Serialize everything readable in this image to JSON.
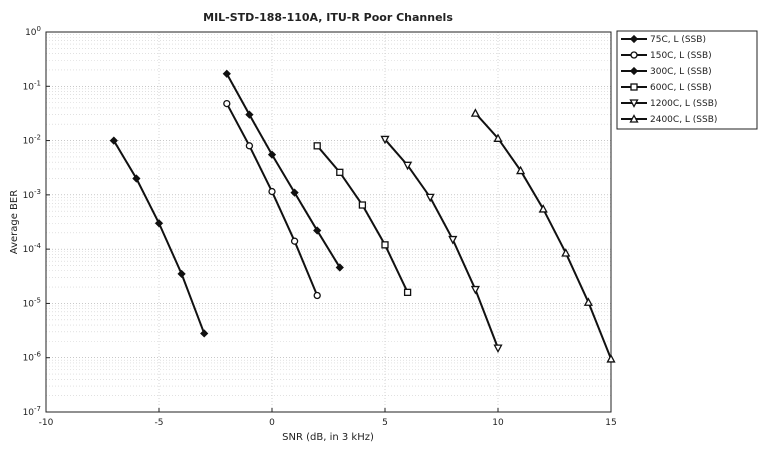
{
  "chart_data": {
    "type": "line",
    "title": "MIL-STD-188-110A, ITU-R Poor Channels",
    "xlabel": "SNR (dB, in 3 kHz)",
    "ylabel": "Average BER",
    "xlim": [
      -10,
      15
    ],
    "ylim": [
      1e-07,
      1
    ],
    "yscale": "log",
    "grid": true,
    "legend_position": "outside-right",
    "x_ticks": [
      "-10",
      "-5",
      "0",
      "5",
      "10",
      "15"
    ],
    "y_tick_exponents": [
      "0",
      "-1",
      "-2",
      "-3",
      "-4",
      "-5",
      "-6",
      "-7"
    ],
    "y_tick_base": "10",
    "line_color": "#111111",
    "series": [
      {
        "name": "75C, L (SSB)",
        "marker": "diamond",
        "x": [
          -7,
          -6,
          -5,
          -4,
          -3
        ],
        "y": [
          0.01,
          0.002,
          0.0003,
          3.5e-05,
          2.8e-06
        ]
      },
      {
        "name": "150C, L (SSB)",
        "marker": "circle",
        "x": [
          -2,
          -1,
          0,
          1,
          2
        ],
        "y": [
          0.048,
          0.008,
          0.00115,
          0.00014,
          1.4e-05
        ]
      },
      {
        "name": "300C, L (SSB)",
        "marker": "diamond",
        "x": [
          -2,
          -1,
          0,
          1,
          2,
          3
        ],
        "y": [
          0.17,
          0.03,
          0.0055,
          0.0011,
          0.00022,
          4.6e-05
        ]
      },
      {
        "name": "600C, L (SSB)",
        "marker": "square",
        "x": [
          2,
          3,
          4,
          5,
          6
        ],
        "y": [
          0.008,
          0.0026,
          0.00065,
          0.00012,
          1.6e-05
        ]
      },
      {
        "name": "1200C, L (SSB)",
        "marker": "triangle-down",
        "x": [
          5,
          6,
          7,
          8,
          9,
          10
        ],
        "y": [
          0.0105,
          0.0035,
          0.0009,
          0.00015,
          1.8e-05,
          1.5e-06
        ]
      },
      {
        "name": "2400C, L (SSB)",
        "marker": "triangle-up",
        "x": [
          9,
          10,
          11,
          12,
          13,
          14,
          15
        ],
        "y": [
          0.032,
          0.011,
          0.0028,
          0.00055,
          8.5e-05,
          1.05e-05,
          9.5e-07
        ]
      }
    ]
  }
}
